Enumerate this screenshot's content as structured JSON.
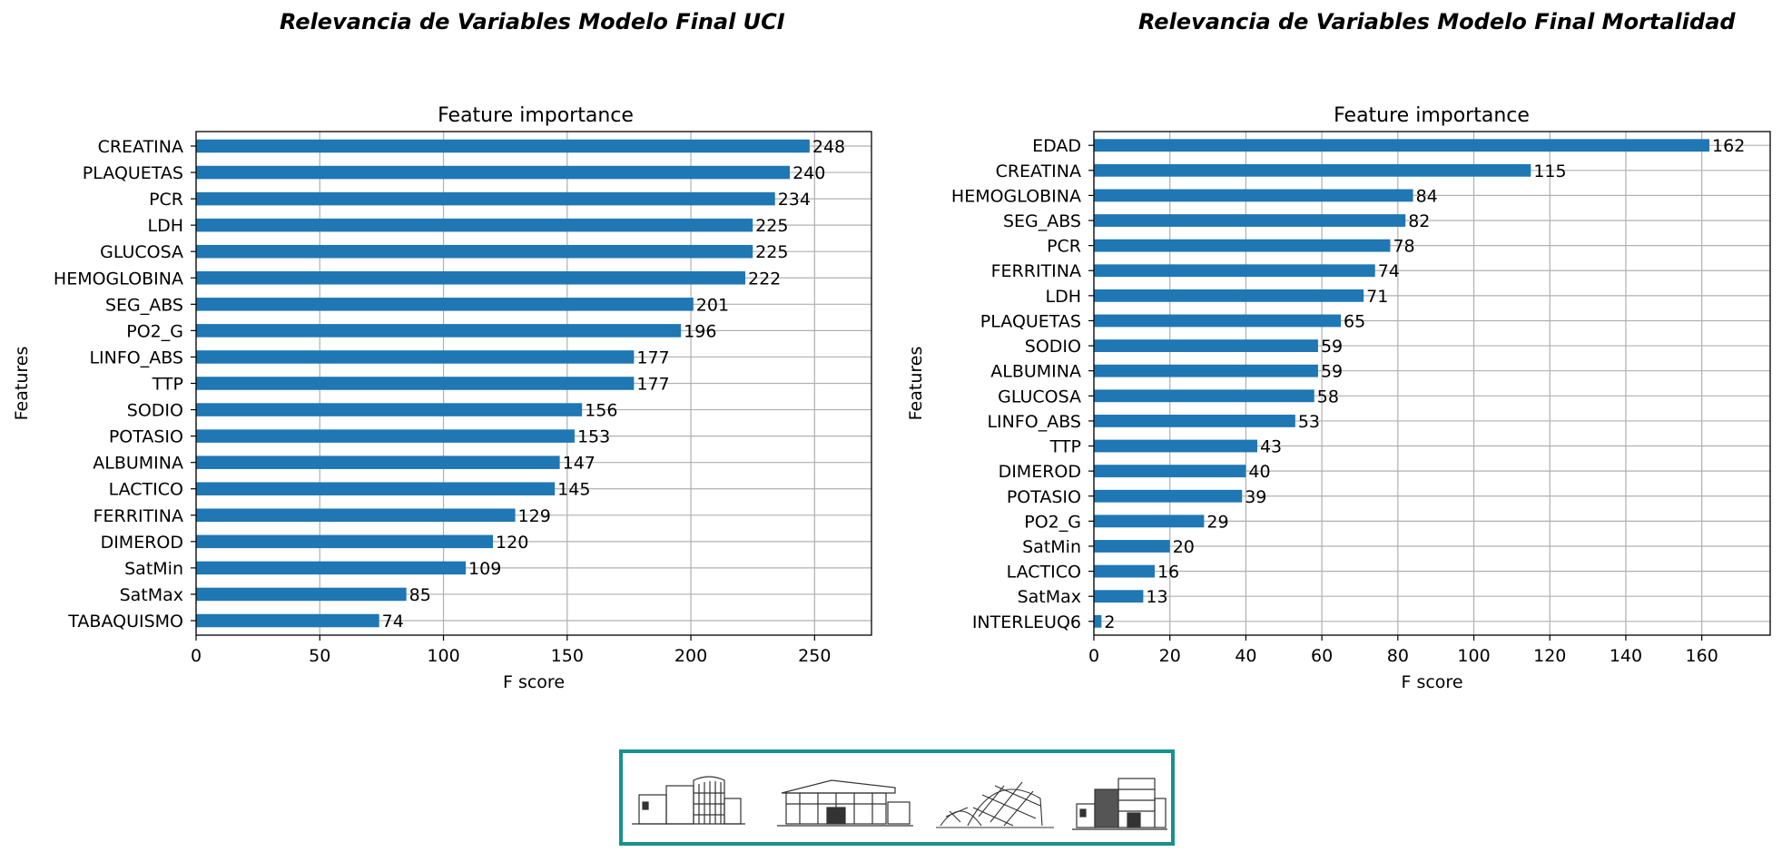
{
  "headings": {
    "uci": "Relevancia de Variables Modelo Final UCI",
    "mortalidad": "Relevancia de Variables Modelo Final Mortalidad"
  },
  "chart_data": [
    {
      "type": "bar",
      "orientation": "horizontal",
      "title": "Feature importance",
      "xlabel": "F score",
      "ylabel": "Features",
      "categories": [
        "CREATINA",
        "PLAQUETAS",
        "PCR",
        "LDH",
        "GLUCOSA",
        "HEMOGLOBINA",
        "SEG_ABS",
        "PO2_G",
        "LINFO_ABS",
        "TTP",
        "SODIO",
        "POTASIO",
        "ALBUMINA",
        "LACTICO",
        "FERRITINA",
        "DIMEROD",
        "SatMin",
        "SatMax",
        "TABAQUISMO"
      ],
      "values": [
        248,
        240,
        234,
        225,
        225,
        222,
        201,
        196,
        177,
        177,
        156,
        153,
        147,
        145,
        129,
        120,
        109,
        85,
        74
      ],
      "xlim": [
        0,
        273
      ],
      "xticks": [
        0,
        50,
        100,
        150,
        200,
        250
      ],
      "grid": true,
      "bar_color": "#1f77b4"
    },
    {
      "type": "bar",
      "orientation": "horizontal",
      "title": "Feature importance",
      "xlabel": "F score",
      "ylabel": "Features",
      "categories": [
        "EDAD",
        "CREATINA",
        "HEMOGLOBINA",
        "SEG_ABS",
        "PCR",
        "FERRITINA",
        "LDH",
        "PLAQUETAS",
        "SODIO",
        "ALBUMINA",
        "GLUCOSA",
        "LINFO_ABS",
        "TTP",
        "DIMEROD",
        "POTASIO",
        "PO2_G",
        "SatMin",
        "LACTICO",
        "SatMax",
        "INTERLEUQ6"
      ],
      "values": [
        162,
        115,
        84,
        82,
        78,
        74,
        71,
        65,
        59,
        59,
        58,
        53,
        43,
        40,
        39,
        29,
        20,
        16,
        13,
        2
      ],
      "xlim": [
        0,
        178
      ],
      "xticks": [
        0,
        20,
        40,
        60,
        80,
        100,
        120,
        140,
        160
      ],
      "grid": true,
      "bar_color": "#1f77b4"
    }
  ],
  "logo": {
    "icons": [
      "building-sketch-icon",
      "building-sketch-icon",
      "dome-building-sketch-icon",
      "building-sketch-icon"
    ],
    "border_color": "#16918f"
  }
}
